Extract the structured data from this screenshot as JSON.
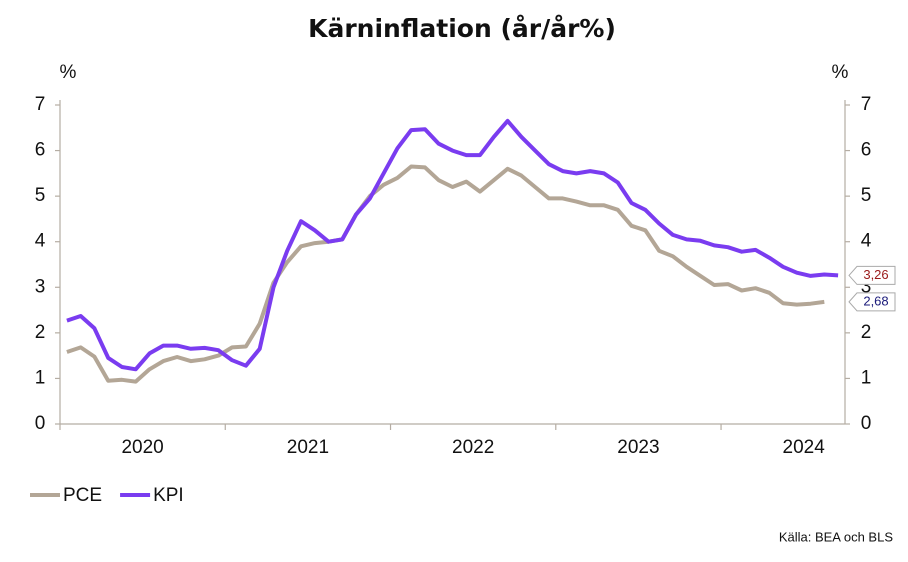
{
  "chart_data": {
    "type": "line",
    "title": "Kärninflation (år/år%)",
    "y_label": "%",
    "y2_label": "%",
    "source": "Källa: BEA och BLS",
    "categories": [
      null,
      null,
      null,
      null,
      null,
      null,
      null,
      null,
      null,
      null,
      null,
      null,
      null,
      null,
      null,
      null,
      null,
      null,
      null,
      null,
      null,
      null,
      null,
      null,
      null,
      null,
      null,
      null,
      null,
      null,
      null,
      null,
      null,
      null,
      null,
      null,
      null,
      null,
      null,
      null,
      null,
      null,
      null,
      null,
      null,
      null,
      null,
      null,
      null,
      null,
      null,
      null,
      null,
      null,
      null,
      null,
      null
    ],
    "year_labels": [
      "2020",
      "2021",
      "2022",
      "2023",
      "2024"
    ],
    "series": [
      {
        "name": "PCE",
        "color": "#b3a696",
        "end_label": "2,68",
        "end_label_color": "#1a1a7a",
        "values": [
          1.58,
          1.68,
          1.48,
          0.95,
          0.97,
          0.93,
          1.2,
          1.38,
          1.47,
          1.38,
          1.42,
          1.5,
          1.68,
          1.7,
          2.2,
          3.1,
          3.55,
          3.9,
          3.97,
          4.0,
          4.05,
          4.6,
          5.0,
          5.25,
          5.4,
          5.65,
          5.63,
          5.35,
          5.2,
          5.32,
          5.1,
          5.35,
          5.6,
          5.45,
          5.2,
          4.95,
          4.95,
          4.88,
          4.8,
          4.8,
          4.7,
          4.35,
          4.25,
          3.8,
          3.68,
          3.45,
          3.25,
          3.05,
          3.07,
          2.93,
          2.98,
          2.88,
          2.65,
          2.62,
          2.64,
          2.68,
          null
        ]
      },
      {
        "name": "KPI",
        "color": "#7a3cf0",
        "end_label": "3,26",
        "end_label_color": "#9a1a1a",
        "values": [
          2.27,
          2.37,
          2.1,
          1.45,
          1.25,
          1.2,
          1.55,
          1.72,
          1.72,
          1.65,
          1.67,
          1.62,
          1.4,
          1.28,
          1.65,
          3.0,
          3.8,
          4.45,
          4.25,
          4.0,
          4.05,
          4.6,
          4.95,
          5.5,
          6.05,
          6.45,
          6.47,
          6.15,
          6.0,
          5.9,
          5.9,
          6.3,
          6.65,
          6.3,
          6.0,
          5.7,
          5.55,
          5.5,
          5.55,
          5.5,
          5.3,
          4.85,
          4.7,
          4.4,
          4.15,
          4.05,
          4.02,
          3.92,
          3.88,
          3.78,
          3.82,
          3.65,
          3.45,
          3.32,
          3.25,
          3.28,
          3.26
        ]
      }
    ],
    "ylim": [
      0,
      7
    ],
    "yticks": [
      0,
      1,
      2,
      3,
      4,
      5,
      6,
      7
    ],
    "y2lim": [
      0,
      7
    ],
    "y2ticks": [
      0,
      1,
      2,
      3,
      4,
      5,
      6,
      7
    ],
    "grid": false
  }
}
